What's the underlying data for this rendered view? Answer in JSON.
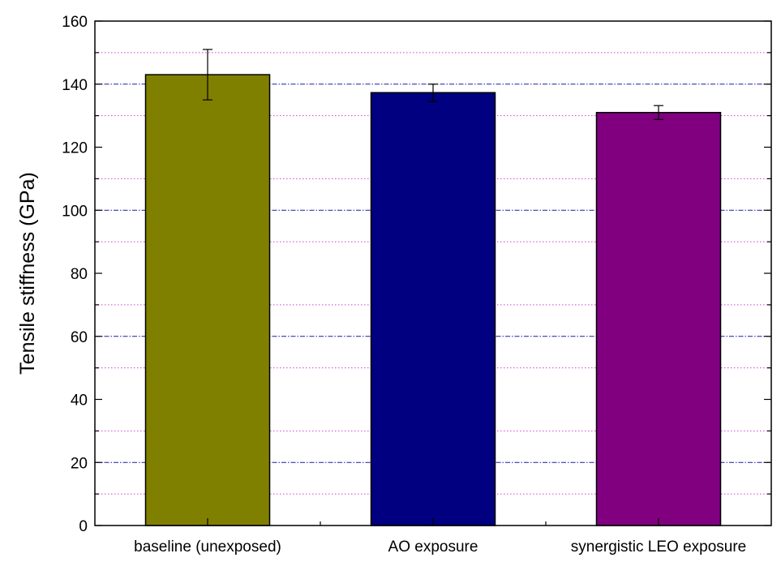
{
  "chart_data": {
    "type": "bar",
    "title": "",
    "xlabel": "",
    "ylabel": "Tensile stiffness (GPa)",
    "ylim": [
      0,
      160
    ],
    "yticks": [
      0,
      20,
      40,
      60,
      80,
      100,
      120,
      140,
      160
    ],
    "major_gridlines": [
      20,
      60,
      100,
      140
    ],
    "minor_gridlines": [
      10,
      30,
      50,
      70,
      90,
      110,
      130,
      150
    ],
    "categories": [
      "baseline (unexposed)",
      "AO exposure",
      "synergistic LEO exposure"
    ],
    "values": [
      143,
      137.3,
      131
    ],
    "error_low": [
      135,
      134.5,
      128.8
    ],
    "error_high": [
      151,
      140,
      133.2
    ],
    "colors": [
      "#808000",
      "#000080",
      "#800080"
    ],
    "grid_major_color": "#1a1aaa",
    "grid_minor_color": "#d040d0",
    "legend": "none"
  }
}
